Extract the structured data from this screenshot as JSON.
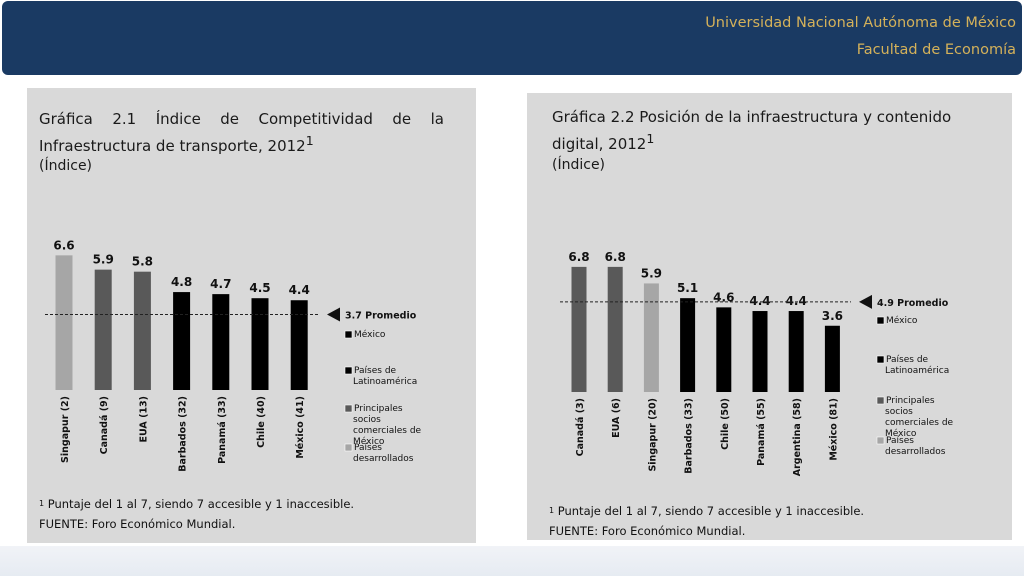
{
  "header": {
    "line1": "Universidad Nacional Autónoma de México",
    "line2": "Facultad de Economía"
  },
  "colors": {
    "banner": "#1a3a63",
    "banner_text": "#d4b15a",
    "panel_bg": "#d9d9d9",
    "mexico": "#000000",
    "latinoamerica": "#000000",
    "socios": "#595959",
    "desarrollados": "#a6a6a6"
  },
  "chart_data": [
    {
      "type": "bar",
      "title_line1": "Gráfica 2.1 Índice de Competitividad de la",
      "title_line2": "Infraestructura de transporte, 2012",
      "title_sup": "1",
      "unit": "(Índice)",
      "categories": [
        "Singapur (2)",
        "Canadá (9)",
        "EUA (13)",
        "Barbados (32)",
        "Panamá (33)",
        "Chile (40)",
        "México (41)"
      ],
      "values": [
        6.6,
        5.9,
        5.8,
        4.8,
        4.7,
        4.5,
        4.4
      ],
      "value_labels": [
        "6.6",
        "5.9",
        "5.8",
        "4.8",
        "4.7",
        "4.5",
        "4.4"
      ],
      "groups": [
        "desarrollados",
        "socios",
        "socios",
        "latinoamerica",
        "latinoamerica",
        "latinoamerica",
        "mexico"
      ],
      "average": 3.7,
      "average_label": "3.7 Promedio",
      "ylim": [
        0,
        7.5
      ],
      "legend": [
        {
          "key": "mexico",
          "label": "México"
        },
        {
          "key": "latinoamerica",
          "label": "Países de Latinoamérica"
        },
        {
          "key": "socios",
          "label": "Principales socios comerciales de México"
        },
        {
          "key": "desarrollados",
          "label": "Países desarrollados"
        }
      ],
      "footnote_sup": "1",
      "footnote": " Puntaje del 1 al 7, siendo 7 accesible y 1 inaccesible.",
      "source": "FUENTE: Foro Económico Mundial."
    },
    {
      "type": "bar",
      "title_line1": "Gráfica 2.2 Posición de la infraestructura y contenido",
      "title_line2": "digital, 2012",
      "title_sup": "1",
      "unit": "(Índice)",
      "categories": [
        "Canadá (3)",
        "EUA (6)",
        "Singapur (20)",
        "Barbados (33)",
        "Chile (50)",
        "Panamá (55)",
        "Argentina (58)",
        "México (81)"
      ],
      "values": [
        6.8,
        6.8,
        5.9,
        5.1,
        4.6,
        4.4,
        4.4,
        3.6
      ],
      "value_labels": [
        "6.8",
        "6.8",
        "5.9",
        "5.1",
        "4.6",
        "4.4",
        "4.4",
        "3.6"
      ],
      "groups": [
        "socios",
        "socios",
        "desarrollados",
        "latinoamerica",
        "latinoamerica",
        "latinoamerica",
        "latinoamerica",
        "mexico"
      ],
      "average": 4.9,
      "average_label": "4.9 Promedio",
      "ylim": [
        0,
        7.5
      ],
      "legend": [
        {
          "key": "mexico",
          "label": "México"
        },
        {
          "key": "latinoamerica",
          "label": "Países de Latinoamérica"
        },
        {
          "key": "socios",
          "label": "Principales socios comerciales de México"
        },
        {
          "key": "desarrollados",
          "label": "Países desarrollados"
        }
      ],
      "footnote_sup": "1",
      "footnote": " Puntaje del 1 al 7, siendo 7 accesible y 1 inaccesible.",
      "source": "FUENTE: Foro Económico Mundial."
    }
  ]
}
